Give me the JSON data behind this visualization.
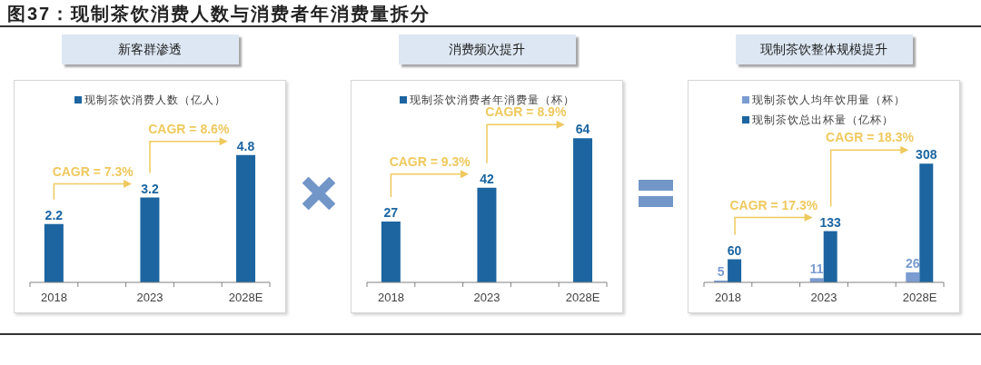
{
  "chart_data": [
    {
      "type": "bar",
      "title": "图37：现制茶饮消费人数与消费者年消费量拆分",
      "subtitle": "新客群渗透",
      "categories": [
        "2018",
        null,
        "2023",
        null,
        "2028E"
      ],
      "series": [
        {
          "name": "现制茶饮消费人数（亿人）",
          "color": "#1c65a1",
          "values": [
            2.2,
            null,
            3.2,
            null,
            4.8
          ]
        }
      ],
      "data_labels": true,
      "legend": "top",
      "tick_labels": "x",
      "annotations": [
        "CAGR = 7.3%",
        "CAGR = 8.6%"
      ]
    },
    {
      "type": "bar",
      "subtitle": "消费频次提升",
      "categories": [
        "2018",
        null,
        "2023",
        null,
        "2028E"
      ],
      "series": [
        {
          "name": "现制茶饮消费者年消费量（杯）",
          "color": "#1c65a1",
          "values": [
            27,
            null,
            42,
            null,
            64
          ]
        }
      ],
      "data_labels": true,
      "legend": "top",
      "tick_labels": "x",
      "annotations": [
        "CAGR = 9.3%",
        "CAGR = 8.9%"
      ]
    },
    {
      "type": "bar",
      "subtitle": "现制茶饮整体规模提升",
      "categories": [
        "2018",
        null,
        "2023",
        null,
        "2028E"
      ],
      "series": [
        {
          "name": "现制茶饮人均年饮用量（杯）",
          "color": "#7b9cd1",
          "values": [
            5,
            null,
            11,
            null,
            26
          ]
        },
        {
          "name": "现制茶饮总出杯量（亿杯）",
          "color": "#1c65a1",
          "values": [
            60,
            null,
            133,
            null,
            308
          ]
        }
      ],
      "data_labels": true,
      "legend": "top",
      "tick_labels": "x",
      "annotations": [
        "CAGR = 17.3%",
        "CAGR = 18.3%"
      ]
    }
  ]
}
